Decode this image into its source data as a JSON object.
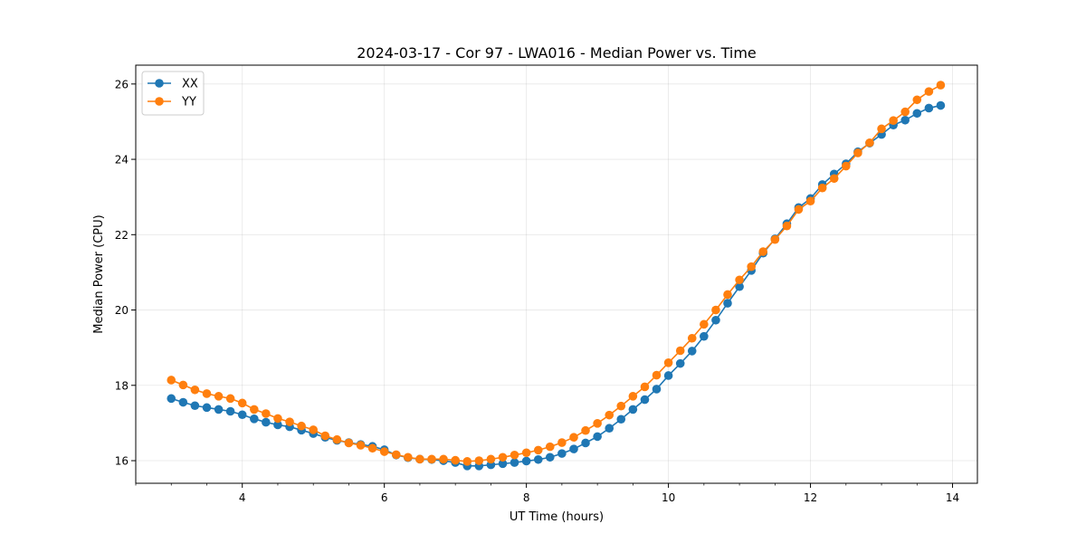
{
  "chart_data": {
    "type": "line",
    "title": "2024-03-17 - Cor 97 - LWA016 - Median Power vs. Time",
    "xlabel": "UT Time (hours)",
    "ylabel": "Median Power (CPU)",
    "xlim": [
      2.5,
      14.35
    ],
    "ylim": [
      15.4,
      26.5
    ],
    "xticks": [
      4,
      6,
      8,
      10,
      12,
      14
    ],
    "xtick_labels": [
      "4",
      "6",
      "8",
      "10",
      "12",
      "14"
    ],
    "yticks": [
      16,
      18,
      20,
      22,
      24,
      26
    ],
    "ytick_labels": [
      "16",
      "18",
      "20",
      "22",
      "24",
      "26"
    ],
    "grid": true,
    "legend_position": "top-left",
    "x": [
      3.0,
      3.167,
      3.333,
      3.5,
      3.667,
      3.833,
      4.0,
      4.167,
      4.333,
      4.5,
      4.667,
      4.833,
      5.0,
      5.167,
      5.333,
      5.5,
      5.667,
      5.833,
      6.0,
      6.167,
      6.333,
      6.5,
      6.667,
      6.833,
      7.0,
      7.167,
      7.333,
      7.5,
      7.667,
      7.833,
      8.0,
      8.167,
      8.333,
      8.5,
      8.667,
      8.833,
      9.0,
      9.167,
      9.333,
      9.5,
      9.667,
      9.833,
      10.0,
      10.167,
      10.333,
      10.5,
      10.667,
      10.833,
      11.0,
      11.167,
      11.333,
      11.5,
      11.667,
      11.833,
      12.0,
      12.167,
      12.333,
      12.5,
      12.667,
      12.833,
      13.0,
      13.167,
      13.333,
      13.5,
      13.667,
      13.833
    ],
    "series": [
      {
        "name": "XX",
        "color": "#1f77b4",
        "values": [
          17.65,
          17.55,
          17.46,
          17.41,
          17.36,
          17.31,
          17.22,
          17.11,
          17.02,
          16.95,
          16.9,
          16.81,
          16.72,
          16.62,
          16.54,
          16.48,
          16.43,
          16.38,
          16.29,
          16.15,
          16.08,
          16.04,
          16.03,
          16.0,
          15.95,
          15.86,
          15.86,
          15.89,
          15.92,
          15.95,
          15.99,
          16.03,
          16.09,
          16.19,
          16.31,
          16.47,
          16.64,
          16.86,
          17.1,
          17.36,
          17.62,
          17.9,
          18.26,
          18.58,
          18.91,
          19.3,
          19.73,
          20.18,
          20.62,
          21.05,
          21.51,
          21.89,
          22.29,
          22.72,
          22.96,
          23.33,
          23.61,
          23.88,
          24.2,
          24.43,
          24.66,
          24.91,
          25.04,
          25.22,
          25.36,
          25.43
        ]
      },
      {
        "name": "YY",
        "color": "#ff7f0e",
        "values": [
          18.14,
          18.01,
          17.88,
          17.78,
          17.71,
          17.65,
          17.53,
          17.36,
          17.25,
          17.12,
          17.03,
          16.92,
          16.82,
          16.66,
          16.56,
          16.47,
          16.41,
          16.33,
          16.24,
          16.16,
          16.09,
          16.04,
          16.04,
          16.04,
          16.01,
          15.98,
          16.0,
          16.04,
          16.09,
          16.15,
          16.21,
          16.28,
          16.37,
          16.48,
          16.62,
          16.8,
          16.99,
          17.21,
          17.45,
          17.71,
          17.96,
          18.27,
          18.6,
          18.92,
          19.25,
          19.62,
          20.0,
          20.41,
          20.8,
          21.15,
          21.55,
          21.87,
          22.23,
          22.67,
          22.89,
          23.24,
          23.49,
          23.82,
          24.17,
          24.44,
          24.81,
          25.03,
          25.26,
          25.58,
          25.8,
          25.97
        ]
      }
    ]
  }
}
